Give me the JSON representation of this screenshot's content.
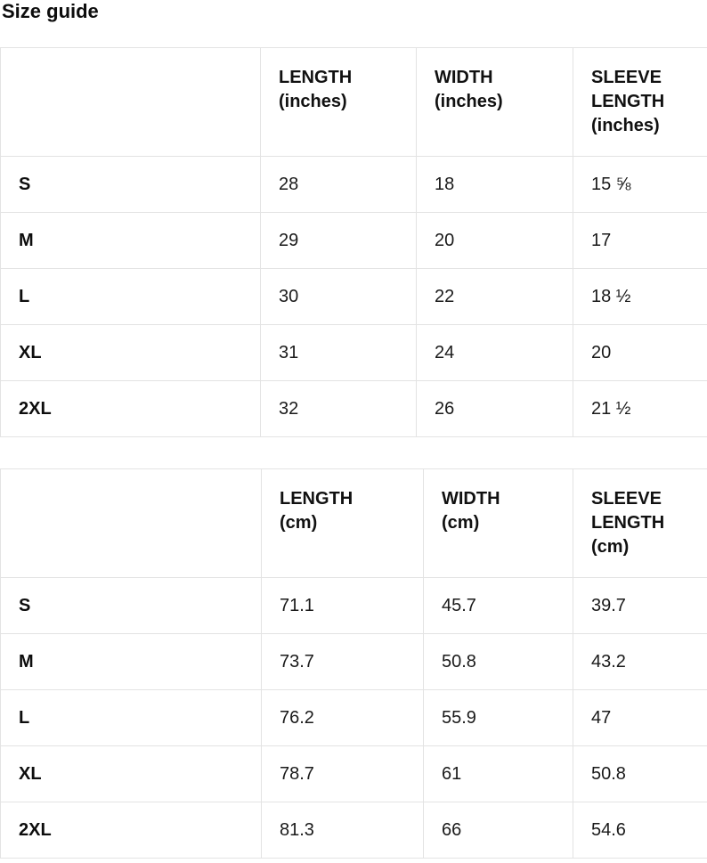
{
  "page": {
    "title": "Size guide"
  },
  "colors": {
    "background": "#ffffff",
    "border": "#e3e3e3",
    "text": "#111111"
  },
  "size_tables": [
    {
      "unit": "inches",
      "columns": [
        {
          "label": "",
          "unit": ""
        },
        {
          "label": "LENGTH",
          "unit": "(inches)"
        },
        {
          "label": "WIDTH",
          "unit": "(inches)"
        },
        {
          "label": "SLEEVE LENGTH",
          "unit": "(inches)"
        }
      ],
      "rows": [
        {
          "size": "S",
          "length": "28",
          "width": "18",
          "sleeve": "15 ⅝"
        },
        {
          "size": "M",
          "length": "29",
          "width": "20",
          "sleeve": "17"
        },
        {
          "size": "L",
          "length": "30",
          "width": "22",
          "sleeve": "18 ½"
        },
        {
          "size": "XL",
          "length": "31",
          "width": "24",
          "sleeve": "20"
        },
        {
          "size": "2XL",
          "length": "32",
          "width": "26",
          "sleeve": "21 ½"
        }
      ]
    },
    {
      "unit": "cm",
      "columns": [
        {
          "label": "",
          "unit": ""
        },
        {
          "label": "LENGTH",
          "unit": "(cm)"
        },
        {
          "label": "WIDTH",
          "unit": "(cm)"
        },
        {
          "label": "SLEEVE LENGTH",
          "unit": "(cm)"
        }
      ],
      "rows": [
        {
          "size": "S",
          "length": "71.1",
          "width": "45.7",
          "sleeve": "39.7"
        },
        {
          "size": "M",
          "length": "73.7",
          "width": "50.8",
          "sleeve": "43.2"
        },
        {
          "size": "L",
          "length": "76.2",
          "width": "55.9",
          "sleeve": "47"
        },
        {
          "size": "XL",
          "length": "78.7",
          "width": "61",
          "sleeve": "50.8"
        },
        {
          "size": "2XL",
          "length": "81.3",
          "width": "66",
          "sleeve": "54.6"
        }
      ]
    }
  ]
}
